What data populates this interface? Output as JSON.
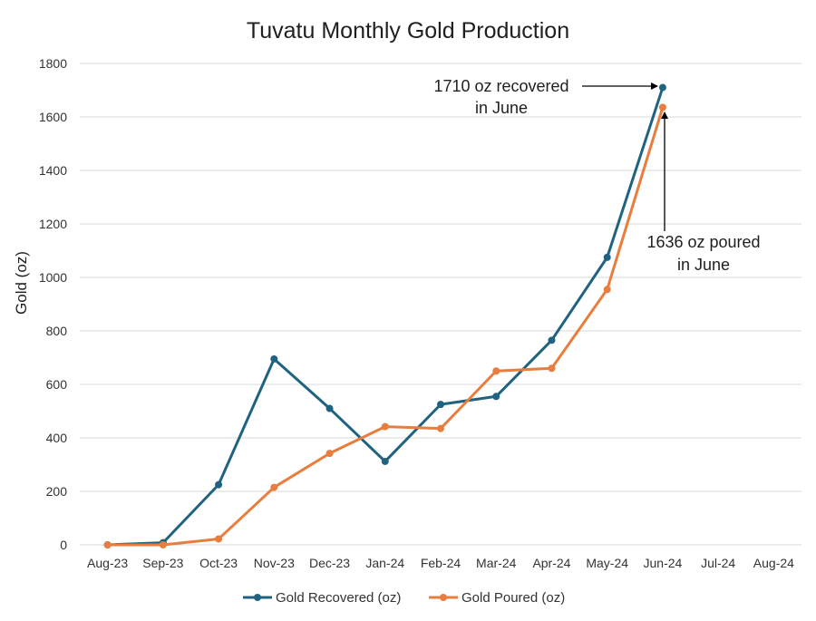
{
  "chart_data": {
    "type": "line",
    "title": "Tuvatu Monthly Gold Production",
    "xlabel": "",
    "ylabel": "Gold (oz)",
    "ylim": [
      0,
      1800
    ],
    "yticks": [
      0,
      200,
      400,
      600,
      800,
      1000,
      1200,
      1400,
      1600,
      1800
    ],
    "grid": true,
    "legend_position": "bottom",
    "categories": [
      "Aug-23",
      "Sep-23",
      "Oct-23",
      "Nov-23",
      "Dec-23",
      "Jan-24",
      "Feb-24",
      "Mar-24",
      "Apr-24",
      "May-24",
      "Jun-24",
      "Jul-24",
      "Aug-24"
    ],
    "series": [
      {
        "name": "Gold Recovered (oz)",
        "color": "#1f6380",
        "values": [
          0,
          8,
          225,
          695,
          510,
          312,
          525,
          555,
          765,
          1075,
          1710,
          null,
          null
        ]
      },
      {
        "name": "Gold Poured (oz)",
        "color": "#e87d3e",
        "values": [
          0,
          0,
          22,
          215,
          342,
          442,
          435,
          650,
          660,
          955,
          1636,
          null,
          null
        ]
      }
    ],
    "annotations": [
      {
        "lines": [
          "1710 oz recovered",
          "in June"
        ],
        "points_to": "Gold Recovered (oz) at Jun-24"
      },
      {
        "lines": [
          "1636 oz poured",
          "in June"
        ],
        "points_to": "Gold Poured (oz) at Jun-24"
      }
    ]
  }
}
